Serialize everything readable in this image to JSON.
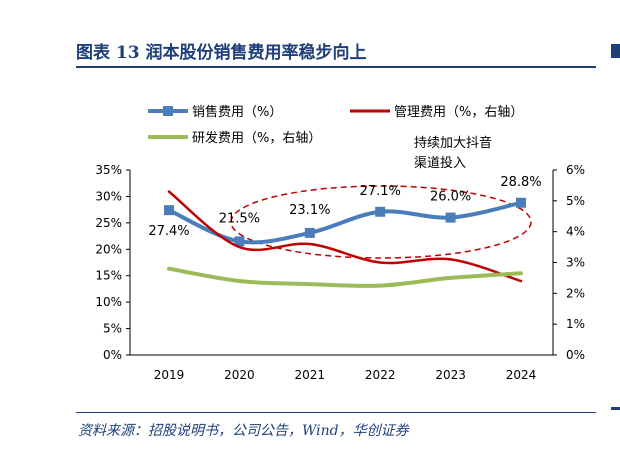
{
  "header": {
    "title": "图表 13   润本股份销售费用率稳步向上"
  },
  "source": "资料来源：招股说明书，公司公告，Wind，华创证券",
  "annotation": {
    "line1": "持续加大抖音",
    "line2": "渠道投入"
  },
  "colors": {
    "sales": "#4a7ebb",
    "mgmt": "#c00000",
    "rd": "#9bbb59",
    "ellipse": "#c00000",
    "axis": "#000000",
    "brand": "#1f3f7a"
  },
  "chart_data": {
    "type": "line",
    "categories": [
      "2019",
      "2020",
      "2021",
      "2022",
      "2023",
      "2024"
    ],
    "series": [
      {
        "name": "销售费用（%）",
        "axis": "left",
        "marker": "square",
        "values": [
          27.4,
          21.5,
          23.1,
          27.1,
          26.0,
          28.8
        ],
        "labels": [
          "27.4%",
          "21.5%",
          "23.1%",
          "27.1%",
          "26.0%",
          "28.8%"
        ]
      },
      {
        "name": "管理费用（%，右轴）",
        "axis": "right",
        "values": [
          5.3,
          3.5,
          3.6,
          3.0,
          3.1,
          2.4
        ]
      },
      {
        "name": "研发费用（%，右轴）",
        "axis": "right",
        "values": [
          2.8,
          2.4,
          2.3,
          2.25,
          2.5,
          2.65
        ]
      }
    ],
    "left_axis": {
      "ylim": [
        0,
        35
      ],
      "ticks": [
        0,
        5,
        10,
        15,
        20,
        25,
        30,
        35
      ],
      "tick_labels": [
        "0%",
        "5%",
        "10%",
        "15%",
        "20%",
        "25%",
        "30%",
        "35%"
      ]
    },
    "right_axis": {
      "ylim": [
        0,
        6
      ],
      "ticks": [
        0,
        1,
        2,
        3,
        4,
        5,
        6
      ],
      "tick_labels": [
        "0%",
        "1%",
        "2%",
        "3%",
        "4%",
        "5%",
        "6%"
      ]
    },
    "grid": false,
    "legend": "top-left"
  }
}
